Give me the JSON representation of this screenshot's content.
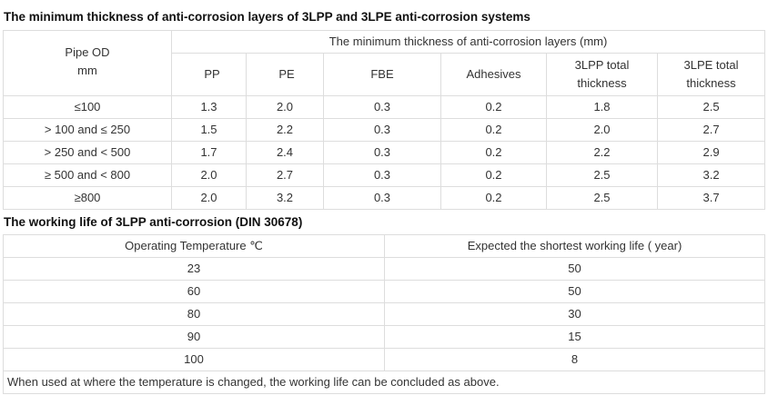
{
  "table1": {
    "title": "The minimum thickness of anti-corrosion layers of 3LPP and 3LPE anti-corrosion systems",
    "corner": "Pipe OD",
    "corner_unit": "mm",
    "group_header": "The minimum thickness of anti-corrosion layers (mm)",
    "columns": [
      "PP",
      "PE",
      "FBE",
      "Adhesives",
      "3LPP total thickness",
      "3LPE total thickness"
    ],
    "rows": [
      [
        "≤100",
        "1.3",
        "2.0",
        "0.3",
        "0.2",
        "1.8",
        "2.5"
      ],
      [
        "> 100 and ≤ 250",
        "1.5",
        "2.2",
        "0.3",
        "0.2",
        "2.0",
        "2.7"
      ],
      [
        "> 250 and < 500",
        "1.7",
        "2.4",
        "0.3",
        "0.2",
        "2.2",
        "2.9"
      ],
      [
        "≥ 500 and < 800",
        "2.0",
        "2.7",
        "0.3",
        "0.2",
        "2.5",
        "3.2"
      ],
      [
        "≥800",
        "2.0",
        "3.2",
        "0.3",
        "0.2",
        "2.5",
        "3.7"
      ]
    ]
  },
  "table2": {
    "title": "The working life of 3LPP anti-corrosion (DIN 30678)",
    "columns": [
      "Operating Temperature ℃",
      "Expected the shortest working life ( year)"
    ],
    "rows": [
      [
        "23",
        "50"
      ],
      [
        "60",
        "50"
      ],
      [
        "80",
        "30"
      ],
      [
        "90",
        "15"
      ],
      [
        "100",
        "8"
      ]
    ],
    "note": "When used at where the temperature is changed, the working life can be concluded as above."
  }
}
